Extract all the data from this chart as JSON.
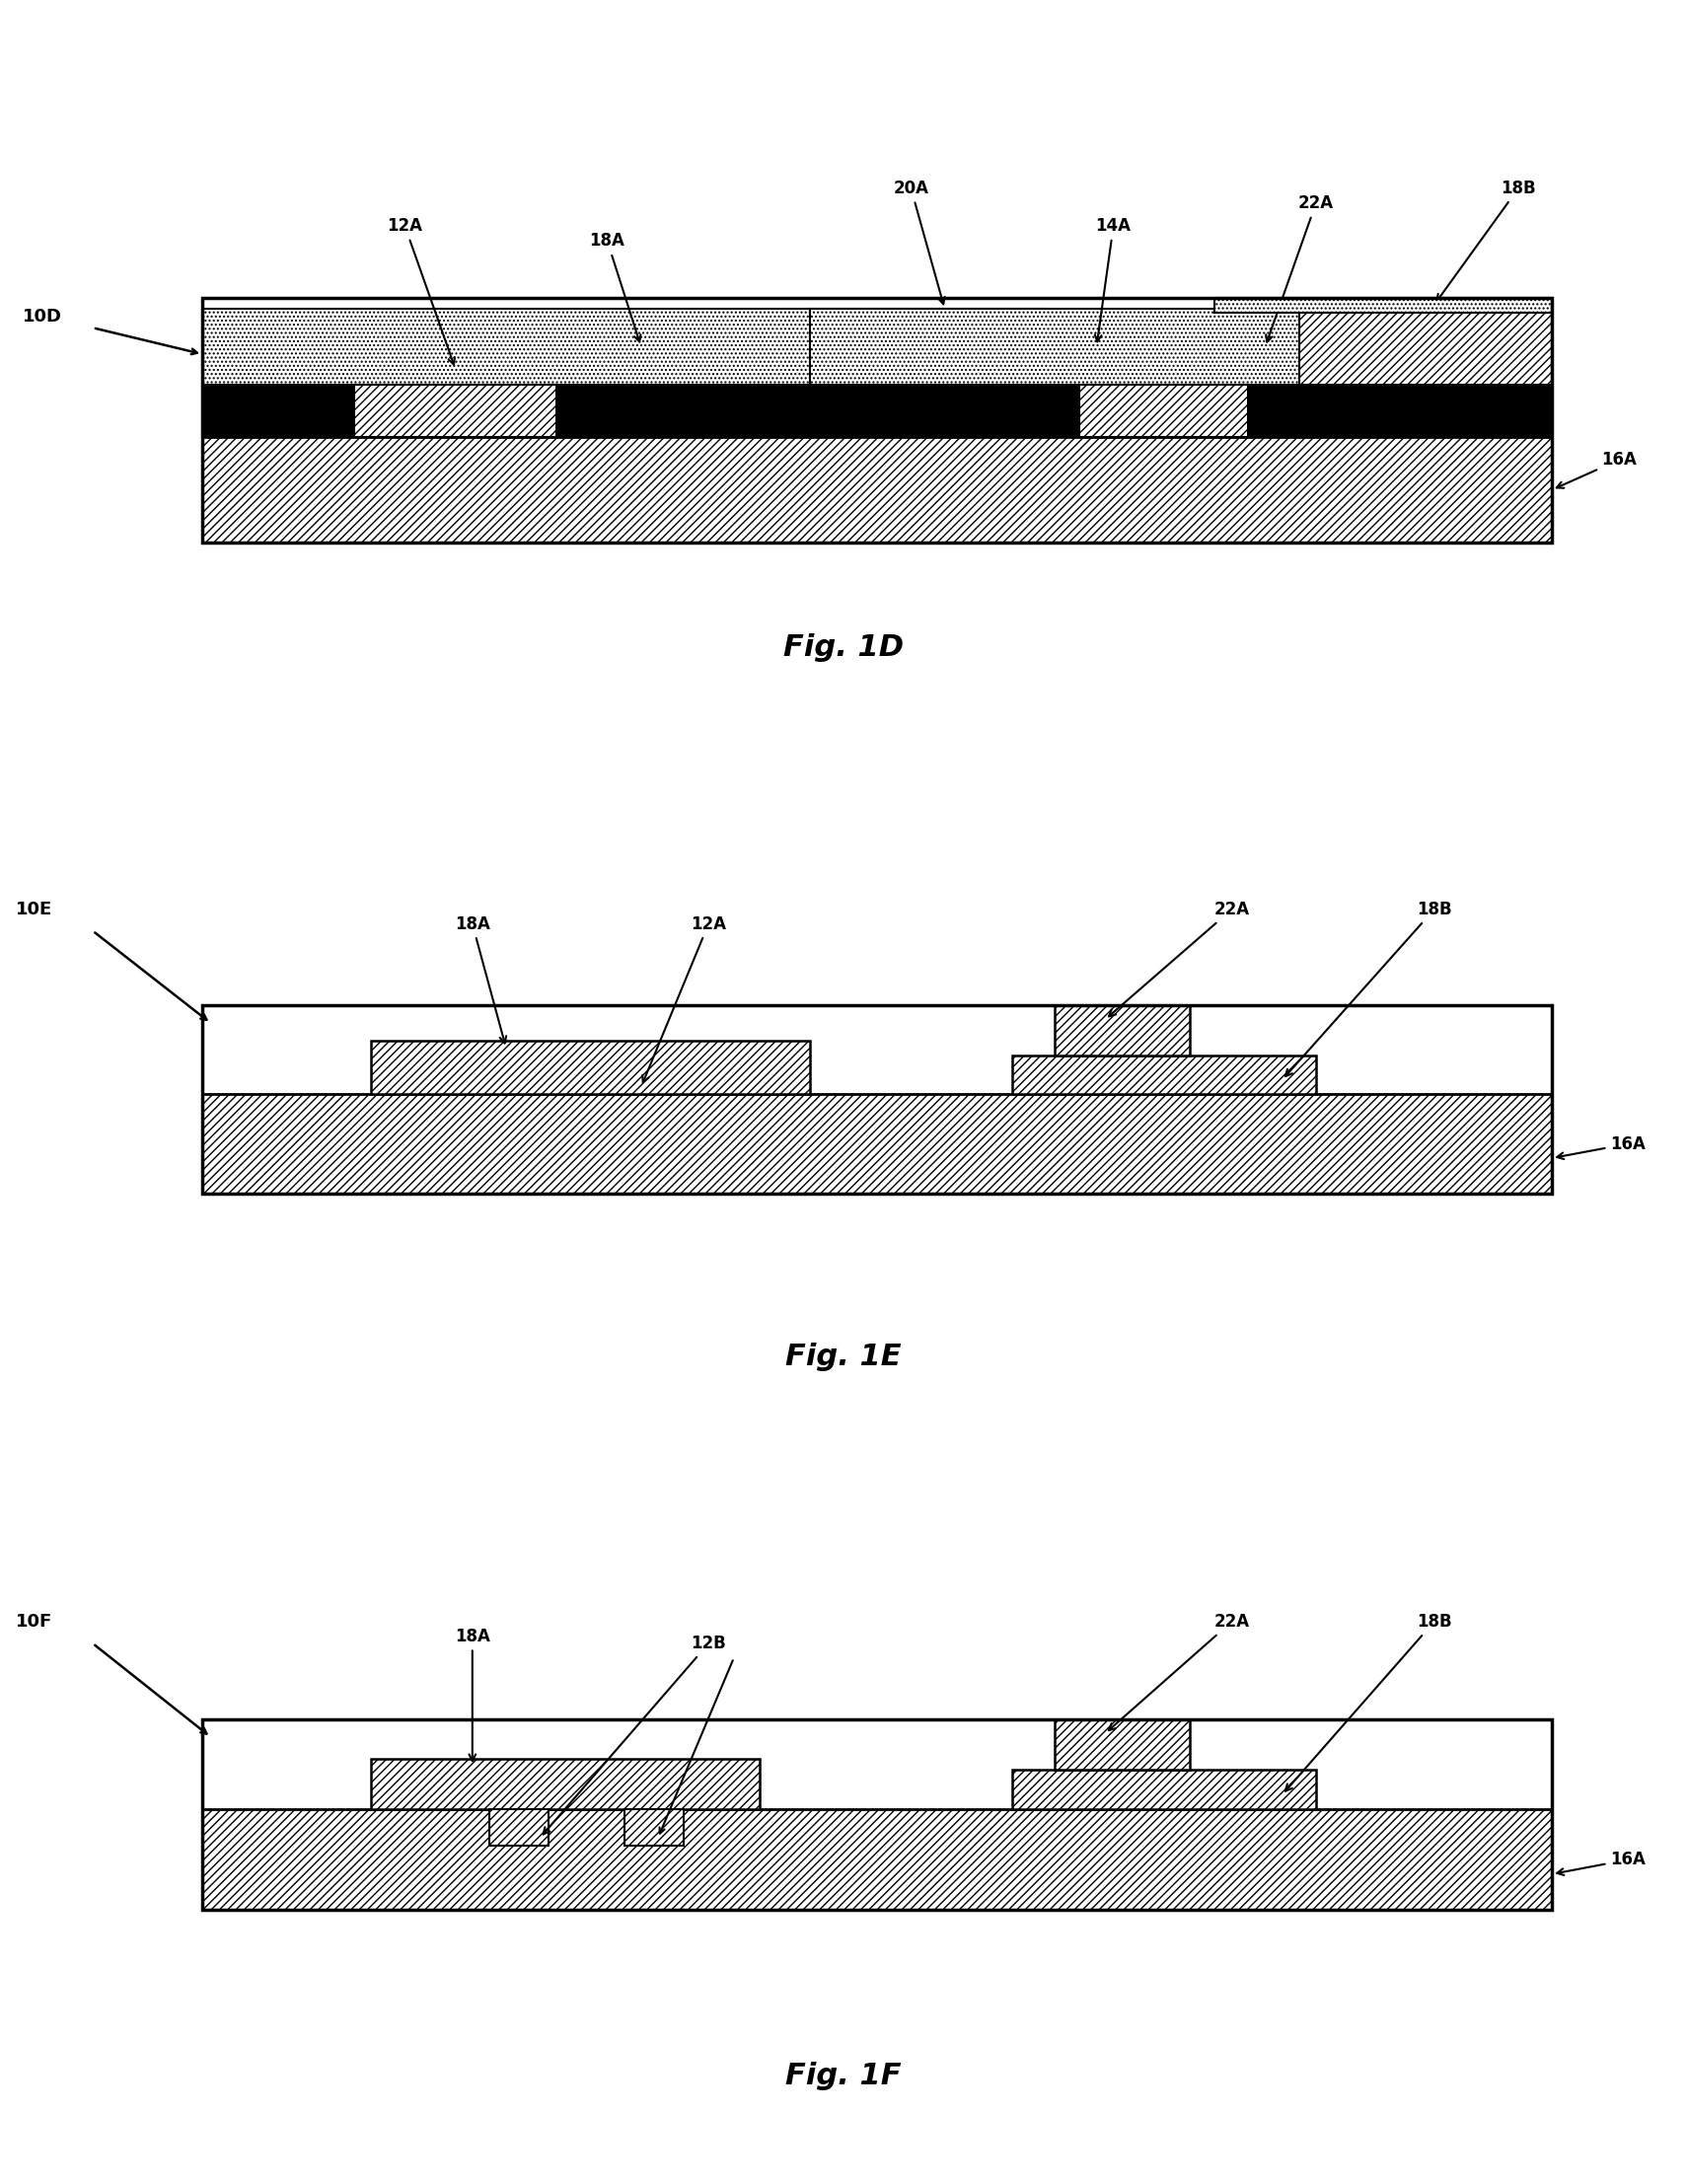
{
  "background_color": "#ffffff",
  "fig_width": 17.1,
  "fig_height": 22.14,
  "fig1d_name": "Fig. 1D",
  "fig1e_name": "Fig. 1E",
  "fig1f_name": "Fig. 1F"
}
